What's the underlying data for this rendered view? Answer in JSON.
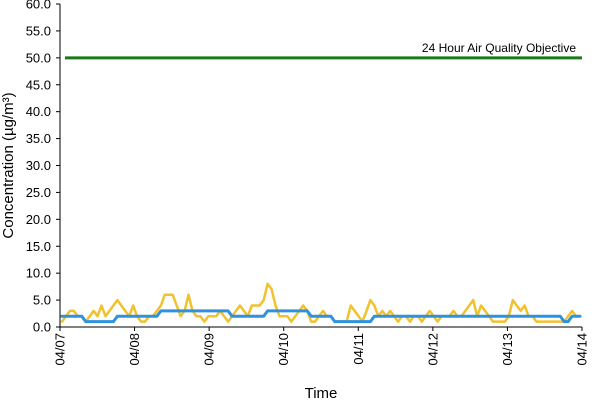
{
  "chart_data": {
    "type": "line",
    "xlabel": "Time",
    "ylabel": "Concentration (µg/m³)",
    "ylim": [
      0,
      60
    ],
    "y_ticks": [
      "0.0",
      "5.0",
      "10.0",
      "15.0",
      "20.0",
      "25.0",
      "30.0",
      "35.0",
      "40.0",
      "45.0",
      "50.0",
      "55.0",
      "60.0"
    ],
    "x_ticks": [
      "04/07",
      "04/08",
      "04/09",
      "04/10",
      "04/11",
      "04/12",
      "04/13",
      "04/14"
    ],
    "grid": false,
    "reference_line": {
      "value": 50.0,
      "label": "24 Hour Air Quality Objective",
      "color": "#1a7a1a"
    },
    "series": [
      {
        "color": "#f2c12e",
        "values": [
          1,
          2,
          3,
          3,
          2,
          2,
          1,
          2,
          3,
          2,
          4,
          2,
          3,
          4,
          5,
          4,
          3,
          2,
          4,
          2,
          1,
          1,
          2,
          2,
          3,
          4,
          6,
          6,
          6,
          4,
          2,
          3,
          6,
          3,
          2,
          2,
          1,
          2,
          2,
          2,
          3,
          2,
          1,
          2,
          3,
          4,
          3,
          2,
          4,
          4,
          4,
          5,
          8,
          7,
          4,
          2,
          2,
          2,
          1,
          2,
          3,
          4,
          3,
          1,
          1,
          2,
          3,
          2,
          2,
          1,
          1,
          1,
          1,
          4,
          3,
          2,
          1,
          3,
          5,
          4,
          2,
          3,
          2,
          3,
          2,
          1,
          2,
          2,
          1,
          2,
          2,
          1,
          2,
          3,
          2,
          1,
          2,
          2,
          2,
          3,
          2,
          2,
          3,
          4,
          5,
          2,
          4,
          3,
          2,
          1,
          1,
          1,
          1,
          2,
          5,
          4,
          3,
          4,
          2,
          2,
          1,
          1,
          1,
          1,
          1,
          1,
          1,
          1,
          2,
          3,
          2,
          2
        ]
      },
      {
        "color": "#2e92dc",
        "values": [
          2,
          2,
          2,
          2,
          2,
          2,
          1,
          1,
          1,
          1,
          1,
          1,
          1,
          1,
          2,
          2,
          2,
          2,
          2,
          2,
          2,
          2,
          2,
          2,
          2,
          3,
          3,
          3,
          3,
          3,
          3,
          3,
          3,
          3,
          3,
          3,
          3,
          3,
          3,
          3,
          3,
          3,
          3,
          2,
          2,
          2,
          2,
          2,
          2,
          2,
          2,
          2,
          3,
          3,
          3,
          3,
          3,
          3,
          3,
          3,
          3,
          3,
          3,
          2,
          2,
          2,
          2,
          2,
          2,
          1,
          1,
          1,
          1,
          1,
          1,
          1,
          1,
          1,
          1,
          2,
          2,
          2,
          2,
          2,
          2,
          2,
          2,
          2,
          2,
          2,
          2,
          2,
          2,
          2,
          2,
          2,
          2,
          2,
          2,
          2,
          2,
          2,
          2,
          2,
          2,
          2,
          2,
          2,
          2,
          2,
          2,
          2,
          2,
          2,
          2,
          2,
          2,
          2,
          2,
          2,
          2,
          2,
          2,
          2,
          2,
          2,
          2,
          1,
          1,
          2,
          2,
          2
        ]
      }
    ]
  }
}
